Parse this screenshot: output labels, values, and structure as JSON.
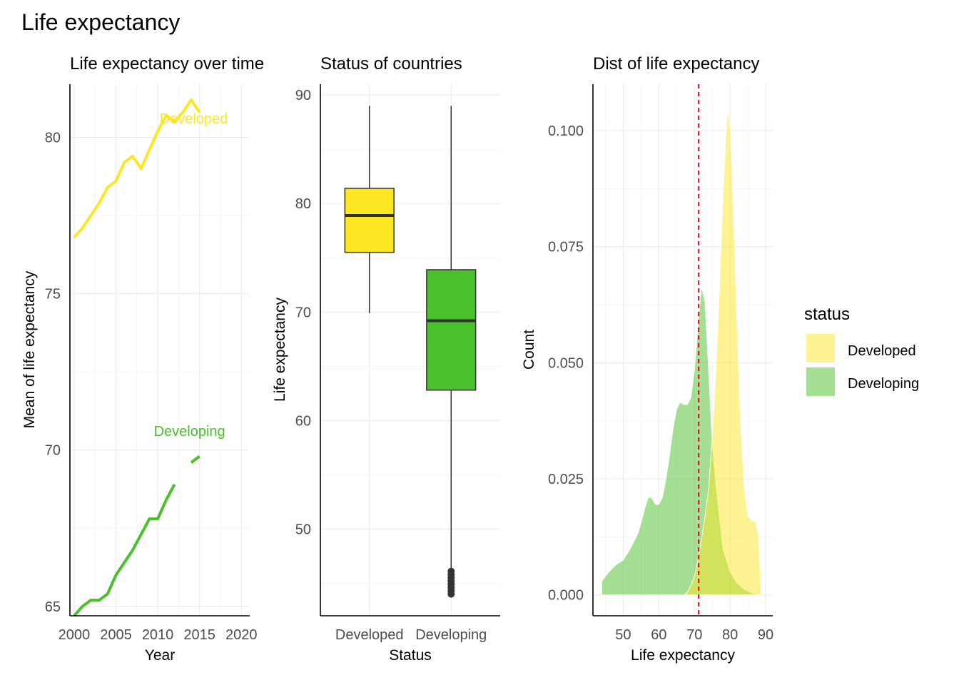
{
  "figure": {
    "title": "Life expectancy",
    "colors": {
      "developed": "#FDE725",
      "developing": "#4AC02A",
      "mean_line": "#E3001B",
      "box_outline": "#333333"
    }
  },
  "legend": {
    "title": "status",
    "entries": [
      {
        "label": "Developed",
        "color": "#FDE725"
      },
      {
        "label": "Developing",
        "color": "#4AC02A"
      }
    ]
  },
  "chart_data": [
    {
      "type": "line",
      "title": "Life expectancy over time",
      "xlabel": "Year",
      "ylabel": "Mean of life expectancy",
      "xlim": [
        1999.5,
        2021
      ],
      "ylim": [
        64.7,
        81.7
      ],
      "x_ticks": [
        2000,
        2005,
        2010,
        2015,
        2020
      ],
      "y_ticks": [
        65,
        70,
        75,
        80
      ],
      "grid": true,
      "series": [
        {
          "name": "Developed",
          "color": "#FDE725",
          "label_position": [
            2014.3,
            80.45
          ],
          "points": [
            [
              2000,
              76.8
            ],
            [
              2001,
              77.1
            ],
            [
              2002,
              77.5
            ],
            [
              2003,
              77.9
            ],
            [
              2004,
              78.4
            ],
            [
              2005,
              78.6
            ],
            [
              2006,
              79.2
            ],
            [
              2007,
              79.4
            ],
            [
              2008,
              79.0
            ],
            [
              2009,
              79.6
            ],
            [
              2010,
              80.2
            ],
            [
              2011,
              80.7
            ],
            [
              2012,
              80.5
            ],
            [
              2013,
              80.8
            ],
            [
              2014,
              81.2
            ],
            [
              2015,
              80.8
            ]
          ]
        },
        {
          "name": "Developing",
          "color": "#4AC02A",
          "label_position": [
            2013.8,
            70.45
          ],
          "points": [
            [
              2000,
              64.7
            ],
            [
              2001,
              65.0
            ],
            [
              2002,
              65.2
            ],
            [
              2003,
              65.2
            ],
            [
              2004,
              65.4
            ],
            [
              2005,
              66.0
            ],
            [
              2006,
              66.4
            ],
            [
              2007,
              66.8
            ],
            [
              2008,
              67.3
            ],
            [
              2009,
              67.8
            ],
            [
              2010,
              67.8
            ],
            [
              2011,
              68.4
            ],
            [
              2012,
              68.9
            ],
            [
              null,
              null
            ],
            [
              2014,
              69.6
            ],
            [
              2015,
              69.8
            ]
          ]
        }
      ]
    },
    {
      "type": "box",
      "title": "Status of countries",
      "xlabel": "Status",
      "ylabel": "Life expectancy",
      "categories": [
        "Developed",
        "Developing"
      ],
      "ylim": [
        42,
        91
      ],
      "y_ticks": [
        50,
        60,
        70,
        80,
        90
      ],
      "grid": true,
      "boxes": [
        {
          "name": "Developed",
          "color": "#FDE725",
          "min": 69.9,
          "q1": 75.5,
          "median": 78.9,
          "q3": 81.4,
          "max": 89.0,
          "outliers": []
        },
        {
          "name": "Developing",
          "color": "#4AC02A",
          "min": 46.3,
          "q1": 62.8,
          "median": 69.2,
          "q3": 73.9,
          "max": 89.0,
          "outliers": [
            44.0,
            44.3,
            44.6,
            44.9,
            45.2,
            45.5,
            45.8,
            46.1
          ]
        }
      ]
    },
    {
      "type": "density",
      "title": "Dist of life expectancy",
      "xlabel": "Life expectancy",
      "ylabel": "Count",
      "xlim": [
        41.5,
        92
      ],
      "ylim": [
        -0.0045,
        0.11
      ],
      "x_ticks": [
        50,
        60,
        70,
        80,
        90
      ],
      "y_ticks": [
        0.0,
        0.025,
        0.05,
        0.075,
        0.1
      ],
      "y_tick_labels": [
        "0.000",
        "0.025",
        "0.050",
        "0.075",
        "0.100"
      ],
      "grid": true,
      "mean_line_x": 71.2,
      "series": [
        {
          "name": "Developing",
          "color": "#4AC02A",
          "points": [
            [
              44,
              0.0
            ],
            [
              44,
              0.003
            ],
            [
              46,
              0.005
            ],
            [
              48,
              0.0065
            ],
            [
              50,
              0.0075
            ],
            [
              52,
              0.01
            ],
            [
              54,
              0.013
            ],
            [
              55,
              0.0155
            ],
            [
              56,
              0.0185
            ],
            [
              57,
              0.021
            ],
            [
              58,
              0.021
            ],
            [
              59,
              0.0195
            ],
            [
              60,
              0.0195
            ],
            [
              61,
              0.021
            ],
            [
              62,
              0.025
            ],
            [
              63,
              0.03
            ],
            [
              64,
              0.036
            ],
            [
              65,
              0.04
            ],
            [
              66,
              0.0415
            ],
            [
              67,
              0.041
            ],
            [
              68,
              0.041
            ],
            [
              69,
              0.0425
            ],
            [
              70,
              0.0485
            ],
            [
              71,
              0.058
            ],
            [
              72,
              0.0665
            ],
            [
              73,
              0.063
            ],
            [
              74,
              0.048
            ],
            [
              75,
              0.033
            ],
            [
              76,
              0.024
            ],
            [
              77,
              0.017
            ],
            [
              78,
              0.01
            ],
            [
              80,
              0.005
            ],
            [
              82,
              0.0025
            ],
            [
              84,
              0.0012
            ],
            [
              86,
              0.0005
            ],
            [
              88,
              0.0
            ]
          ]
        },
        {
          "name": "Developed",
          "color": "#FDE725",
          "points": [
            [
              67,
              0.0
            ],
            [
              68,
              0.0005
            ],
            [
              69,
              0.002
            ],
            [
              70,
              0.004
            ],
            [
              71,
              0.0075
            ],
            [
              72,
              0.012
            ],
            [
              73,
              0.017
            ],
            [
              74,
              0.023
            ],
            [
              75,
              0.034
            ],
            [
              76,
              0.048
            ],
            [
              77,
              0.066
            ],
            [
              78,
              0.086
            ],
            [
              79,
              0.101
            ],
            [
              79.5,
              0.1045
            ],
            [
              80,
              0.101
            ],
            [
              81,
              0.082
            ],
            [
              82,
              0.058
            ],
            [
              83,
              0.037
            ],
            [
              84,
              0.023
            ],
            [
              85,
              0.017
            ],
            [
              86,
              0.016
            ],
            [
              87,
              0.016
            ],
            [
              88,
              0.013
            ],
            [
              88.8,
              0.0
            ]
          ]
        }
      ]
    }
  ]
}
